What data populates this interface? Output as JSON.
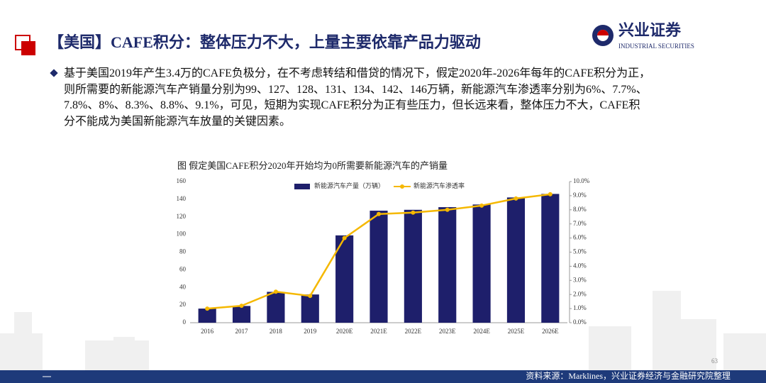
{
  "header": {
    "title": "【美国】CAFE积分：整体压力不大，上量主要依靠产品力驱动",
    "logo_cn": "兴业证券",
    "logo_en": "INDUSTRIAL SECURITIES"
  },
  "bullet_lines": [
    "基于美国2019年产生3.4万的CAFE负极分，在不考虑转结和借贷的情况下，假定2020年-2026年每年的CAFE积分为正，",
    "则所需要的新能源汽车产销量分别为99、127、128、131、134、142、146万辆，新能源汽车渗透率分别为6%、7.7%、",
    "7.8%、8%、8.3%、8.8%、9.1%，可见，短期为实现CAFE积分为正有些压力，但长远来看，整体压力不大，CAFE积",
    "分不能成为美国新能源汽车放量的关键因素。"
  ],
  "page_number": "63",
  "source": "资料来源：Marklines，兴业证券经济与金融研究院整理",
  "chart_data": {
    "type": "bar_line",
    "title": "图 假定美国CAFE积分2020年开始均为0所需要新能源汽车的产销量",
    "categories": [
      "2016",
      "2017",
      "2018",
      "2019",
      "2020E",
      "2021E",
      "2022E",
      "2023E",
      "2024E",
      "2025E",
      "2026E"
    ],
    "series": [
      {
        "name": "新能源汽车产量（万辆）",
        "type": "bar",
        "color": "#1e1f6b",
        "values": [
          16,
          19,
          35,
          32,
          99,
          127,
          128,
          131,
          134,
          142,
          146
        ]
      },
      {
        "name": "新能源汽车渗透率",
        "type": "line",
        "axis": "y2",
        "color": "#f5b800",
        "values": [
          1.0,
          1.2,
          2.2,
          1.9,
          6,
          7.7,
          7.8,
          8,
          8.3,
          8.8,
          9.1
        ]
      }
    ],
    "ylim": [
      0,
      160
    ],
    "yticks": [
      0,
      20,
      40,
      60,
      80,
      100,
      120,
      140,
      160
    ],
    "y2lim": [
      0,
      10
    ],
    "y2ticks": [
      {
        "value": 0,
        "label": "0.0%"
      },
      {
        "value": 1,
        "label": "1.0%"
      },
      {
        "value": 2,
        "label": "2.0%"
      },
      {
        "value": 3,
        "label": "3.0%"
      },
      {
        "value": 4,
        "label": "4.0%"
      },
      {
        "value": 5,
        "label": "5.0%"
      },
      {
        "value": 6,
        "label": "6.0%"
      },
      {
        "value": 7,
        "label": "7.0%"
      },
      {
        "value": 8,
        "label": "8.0%"
      },
      {
        "value": 9,
        "label": "9.0%"
      },
      {
        "value": 10,
        "label": "10.0%"
      }
    ],
    "legend": "top"
  }
}
